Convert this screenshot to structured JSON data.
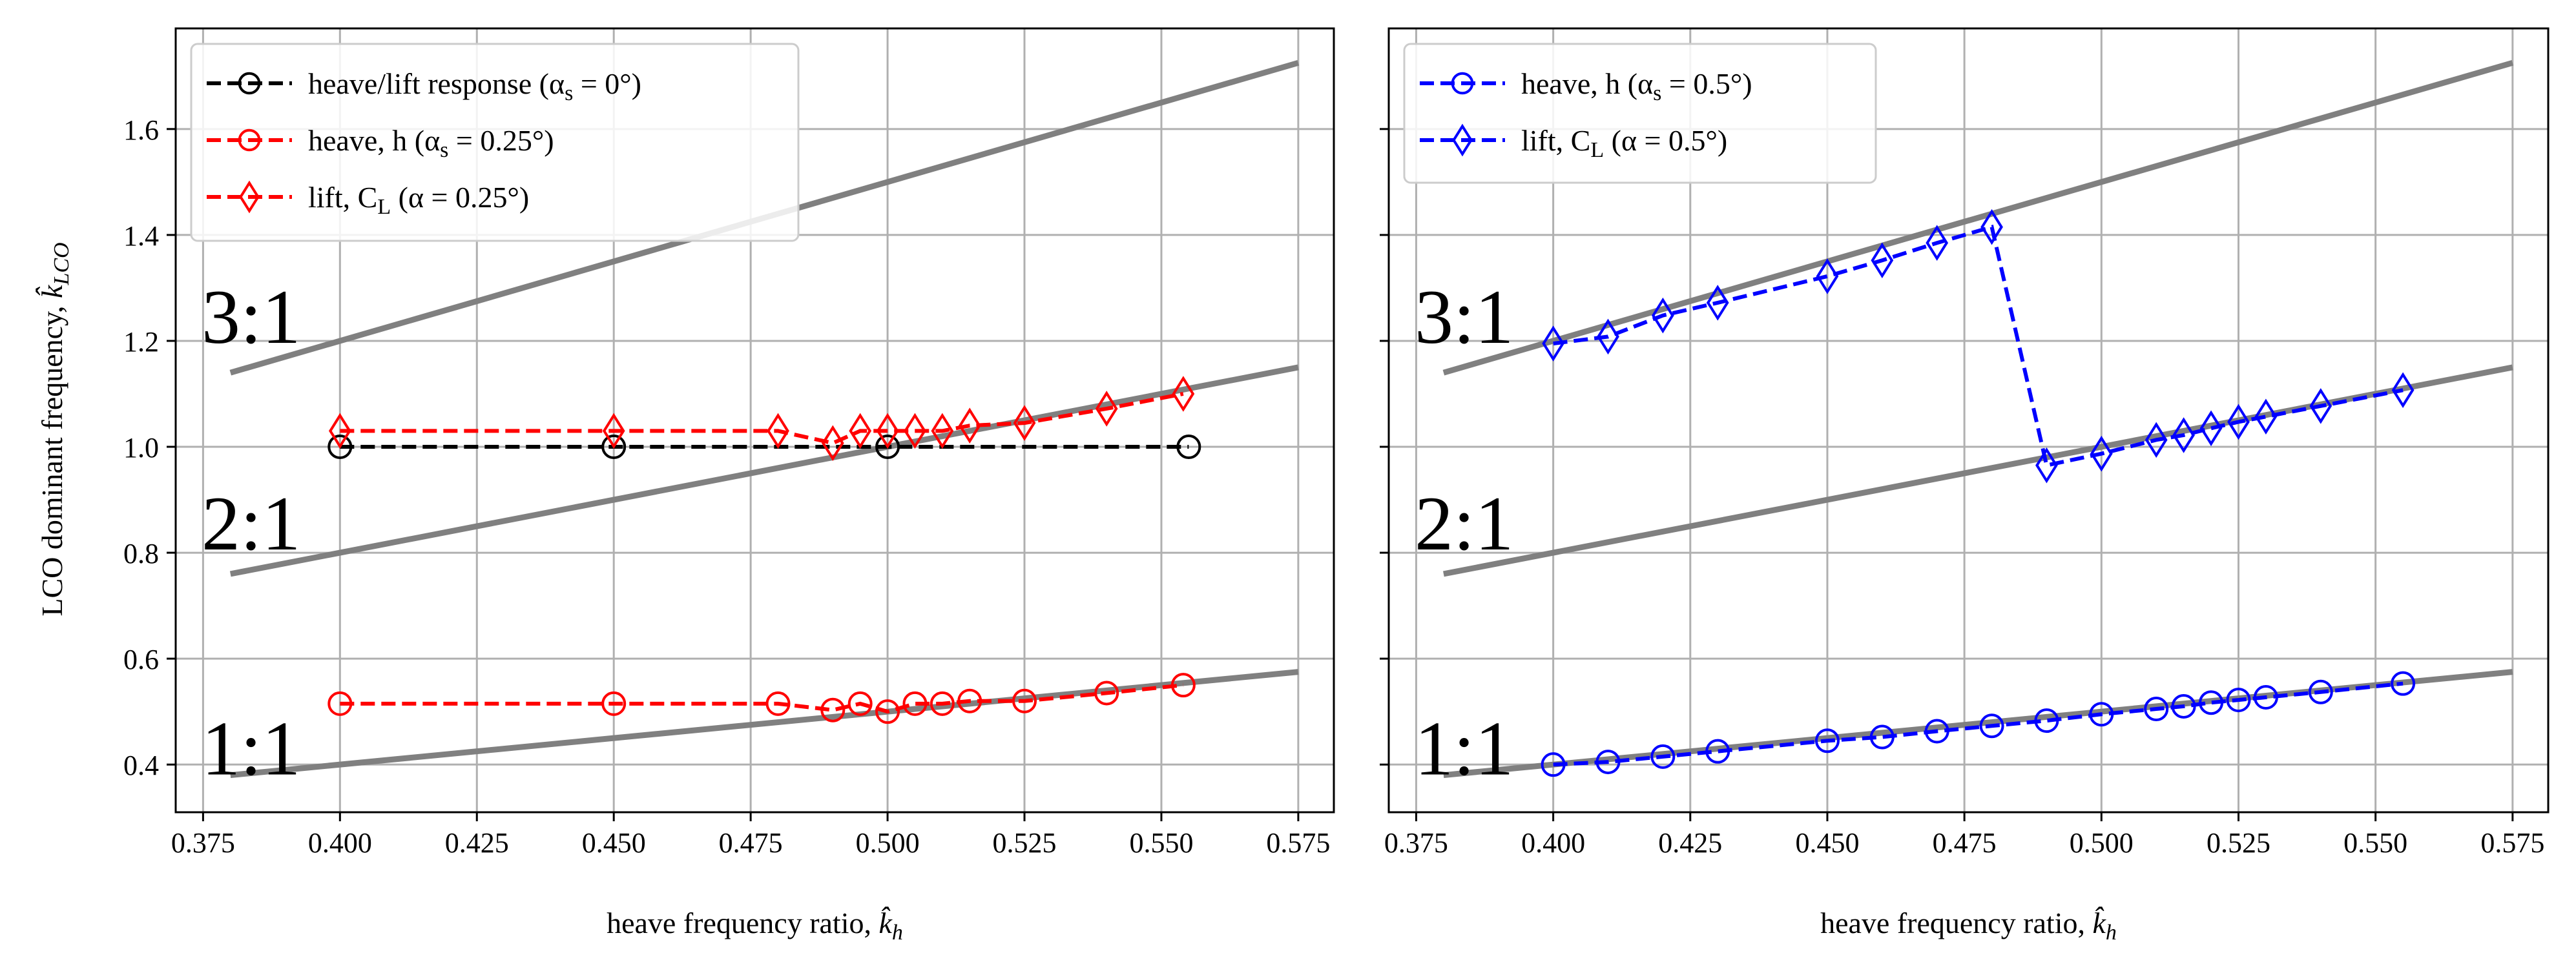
{
  "chart_data": [
    {
      "type": "line",
      "xlabel": "heave frequency ratio, k̂h",
      "ylabel": "LCO dominant frequency, k̂LCO",
      "xlim": [
        0.37,
        0.5815
      ],
      "ylim": [
        0.31,
        1.79
      ],
      "xticks": [
        0.375,
        0.4,
        0.425,
        0.45,
        0.475,
        0.5,
        0.525,
        0.55,
        0.575
      ],
      "xtick_labels": [
        "0.375",
        "0.400",
        "0.425",
        "0.450",
        "0.475",
        "0.500",
        "0.525",
        "0.550",
        "0.575"
      ],
      "yticks": [
        0.4,
        0.6,
        0.8,
        1.0,
        1.2,
        1.4,
        1.6
      ],
      "ytick_labels": [
        "0.4",
        "0.6",
        "0.8",
        "1.0",
        "1.2",
        "1.4",
        "1.6"
      ],
      "grid": true,
      "legend_position": "top-left",
      "reference_lines": [
        {
          "label": "1:1",
          "factor": 1,
          "x": [
            0.38,
            0.575
          ]
        },
        {
          "label": "2:1",
          "factor": 2,
          "x": [
            0.38,
            0.575
          ]
        },
        {
          "label": "3:1",
          "factor": 3,
          "x": [
            0.38,
            0.575
          ]
        }
      ],
      "series": [
        {
          "name": "heave/lift response (α",
          "name_sub": "s",
          "name_tail": " = 0°)",
          "color": "#000000",
          "marker": "circle",
          "x": [
            0.4,
            0.45,
            0.5,
            0.555
          ],
          "y": [
            1.0,
            1.0,
            1.0,
            1.0
          ]
        },
        {
          "name": "heave, h (α",
          "name_sub": "s",
          "name_tail": " = 0.25°)",
          "color": "#ff0000",
          "marker": "circle",
          "x": [
            0.4,
            0.45,
            0.48,
            0.49,
            0.495,
            0.5,
            0.505,
            0.51,
            0.515,
            0.525,
            0.54,
            0.554
          ],
          "y": [
            0.515,
            0.515,
            0.515,
            0.503,
            0.515,
            0.5,
            0.515,
            0.515,
            0.52,
            0.52,
            0.535,
            0.55
          ]
        },
        {
          "name": "lift, C",
          "name_sub": "L",
          "name_tail": " (α = 0.25°)",
          "color": "#ff0000",
          "marker": "diamond",
          "x": [
            0.4,
            0.45,
            0.48,
            0.49,
            0.495,
            0.5,
            0.505,
            0.51,
            0.515,
            0.525,
            0.54,
            0.554
          ],
          "y": [
            1.03,
            1.03,
            1.03,
            1.007,
            1.03,
            1.03,
            1.03,
            1.03,
            1.04,
            1.045,
            1.072,
            1.1
          ]
        }
      ]
    },
    {
      "type": "line",
      "xlabel": "heave frequency ratio, k̂h",
      "ylabel": "",
      "xlim": [
        0.37,
        0.5815
      ],
      "ylim": [
        0.31,
        1.79
      ],
      "xticks": [
        0.375,
        0.4,
        0.425,
        0.45,
        0.475,
        0.5,
        0.525,
        0.55,
        0.575
      ],
      "xtick_labels": [
        "0.375",
        "0.400",
        "0.425",
        "0.450",
        "0.475",
        "0.500",
        "0.525",
        "0.550",
        "0.575"
      ],
      "yticks": [
        0.4,
        0.6,
        0.8,
        1.0,
        1.2,
        1.4,
        1.6
      ],
      "grid": true,
      "legend_position": "top-left",
      "reference_lines": [
        {
          "label": "1:1",
          "factor": 1,
          "x": [
            0.38,
            0.575
          ]
        },
        {
          "label": "2:1",
          "factor": 2,
          "x": [
            0.38,
            0.575
          ]
        },
        {
          "label": "3:1",
          "factor": 3,
          "x": [
            0.38,
            0.575
          ]
        }
      ],
      "series": [
        {
          "name": "heave, h (α",
          "name_sub": "s",
          "name_tail": " = 0.5°)",
          "color": "#0000ff",
          "marker": "circle",
          "x": [
            0.4,
            0.41,
            0.42,
            0.43,
            0.45,
            0.46,
            0.47,
            0.48,
            0.49,
            0.5,
            0.51,
            0.515,
            0.52,
            0.525,
            0.53,
            0.54,
            0.555
          ],
          "y": [
            0.4,
            0.405,
            0.415,
            0.425,
            0.445,
            0.452,
            0.463,
            0.473,
            0.483,
            0.495,
            0.505,
            0.51,
            0.517,
            0.522,
            0.527,
            0.537,
            0.553
          ]
        },
        {
          "name": "lift, C",
          "name_sub": "L",
          "name_tail": " (α = 0.5°)",
          "color": "#0000ff",
          "marker": "diamond",
          "x": [
            0.4,
            0.41,
            0.42,
            0.43,
            0.45,
            0.46,
            0.47,
            0.48,
            0.49,
            0.5,
            0.51,
            0.515,
            0.52,
            0.525,
            0.53,
            0.54,
            0.555
          ],
          "y": [
            1.195,
            1.208,
            1.248,
            1.272,
            1.322,
            1.352,
            1.385,
            1.415,
            0.965,
            0.987,
            1.013,
            1.022,
            1.035,
            1.047,
            1.057,
            1.077,
            1.107
          ]
        }
      ]
    }
  ]
}
